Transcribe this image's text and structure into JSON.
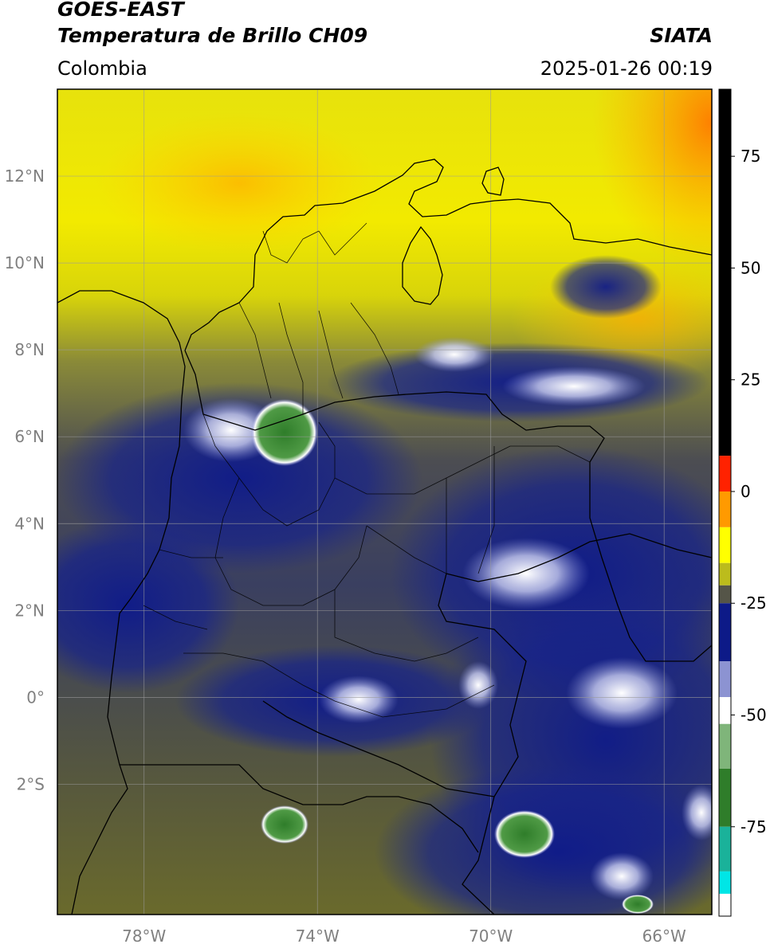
{
  "header": {
    "satellite": "GOES-EAST",
    "product": "Temperatura de Brillo CH09",
    "brand": "SIATA",
    "region": "Colombia",
    "timestamp": "2025-01-26 00:19"
  },
  "map": {
    "lon_range": [
      -80.0,
      -64.9
    ],
    "lat_range": [
      -5.0,
      14.0
    ],
    "lat_ticks": [
      {
        "value": 12,
        "label": "12°N"
      },
      {
        "value": 10,
        "label": "10°N"
      },
      {
        "value": 8,
        "label": "8°N"
      },
      {
        "value": 6,
        "label": "6°N"
      },
      {
        "value": 4,
        "label": "4°N"
      },
      {
        "value": 2,
        "label": "2°N"
      },
      {
        "value": 0,
        "label": "0°"
      },
      {
        "value": -2,
        "label": "2°S"
      }
    ],
    "lon_ticks": [
      {
        "value": -78,
        "label": "78°W"
      },
      {
        "value": -74,
        "label": "74°W"
      },
      {
        "value": -70,
        "label": "70°W"
      },
      {
        "value": -66,
        "label": "66°W"
      }
    ],
    "gridlines": true,
    "colors": {
      "grid": "#9a9a9a",
      "border": "#000000",
      "tick_label": "#808080"
    }
  },
  "colorbar": {
    "range": [
      -95,
      90
    ],
    "ticks": [
      {
        "value": 75,
        "label": "75"
      },
      {
        "value": 50,
        "label": "50"
      },
      {
        "value": 25,
        "label": "25"
      },
      {
        "value": 0,
        "label": "0"
      },
      {
        "value": -25,
        "label": "-25"
      },
      {
        "value": -50,
        "label": "-50"
      },
      {
        "value": -75,
        "label": "-75"
      }
    ],
    "segments": [
      {
        "from": 8,
        "to": 90,
        "color": "#000000"
      },
      {
        "from": 0,
        "to": 8,
        "color": "#ff2200"
      },
      {
        "from": -8,
        "to": 0,
        "color": "#ff9a00"
      },
      {
        "from": -16,
        "to": -8,
        "color": "#ffff00"
      },
      {
        "from": -21,
        "to": -16,
        "color": "#bcbc1c"
      },
      {
        "from": -25,
        "to": -21,
        "color": "#555548"
      },
      {
        "from": -38,
        "to": -25,
        "color": "#0d1a88"
      },
      {
        "from": -46,
        "to": -38,
        "color": "#8c93d2"
      },
      {
        "from": -52,
        "to": -46,
        "color": "#ffffff"
      },
      {
        "from": -62,
        "to": -52,
        "color": "#7fb57a"
      },
      {
        "from": -75,
        "to": -62,
        "color": "#2f7d2a"
      },
      {
        "from": -85,
        "to": -75,
        "color": "#1ab29a"
      },
      {
        "from": -90,
        "to": -85,
        "color": "#00e6e6"
      },
      {
        "from": -95,
        "to": -90,
        "color": "#ffffff"
      }
    ]
  }
}
